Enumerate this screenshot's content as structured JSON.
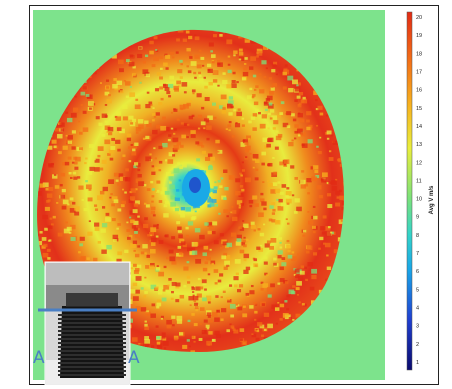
{
  "chart_data": {
    "type": "heatmap",
    "title": "",
    "xlabel": "",
    "ylabel": "",
    "colorbar": {
      "label": "Avg V m/s",
      "min": 0,
      "max": 20,
      "ticks": [
        "20",
        "19",
        "18",
        "17",
        "16",
        "15",
        "14",
        "13",
        "12",
        "11",
        "10",
        "9",
        "8",
        "7",
        "6",
        "5",
        "4",
        "3",
        "2",
        "1"
      ],
      "colormap": [
        "#0a0a6e",
        "#1f3fd1",
        "#19a6e8",
        "#34d4c8",
        "#7be27a",
        "#e9ee3c",
        "#f7b21e",
        "#f36c17",
        "#e22b14"
      ]
    },
    "background_value_color": "#7de38c",
    "inset": {
      "letters": [
        "A",
        "A"
      ]
    }
  }
}
